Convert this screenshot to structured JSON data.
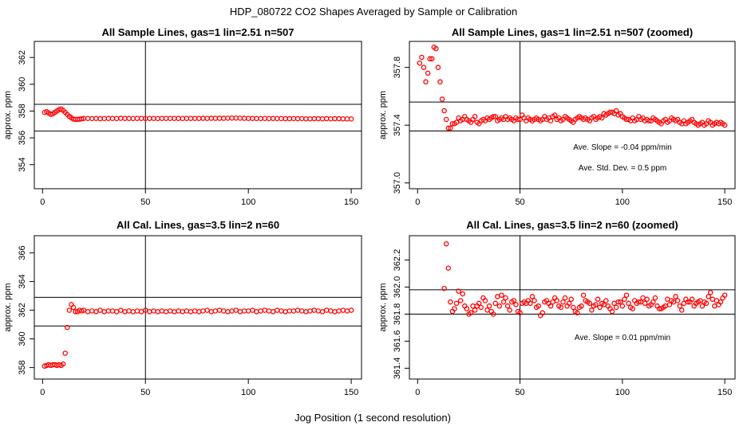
{
  "figure": {
    "title": "HDP_080722  CO2 Shapes Averaged by Sample or Calibration",
    "xlabel": "Jog Position (1 second resolution)"
  },
  "colors": {
    "points": "#ff0000",
    "axes": "#000000"
  },
  "chart_data": [
    {
      "type": "scatter",
      "title": "All Sample Lines, gas=1 lin=2.51 n=507",
      "xlabel": "",
      "ylabel": "approx. ppm",
      "xlim": [
        -4,
        155
      ],
      "ylim": [
        352.2,
        363.2
      ],
      "xticks": [
        0,
        50,
        100,
        150
      ],
      "yticks": [
        354,
        356,
        358,
        360,
        362
      ],
      "hlines": [
        358.5,
        356.5
      ],
      "vline": 50,
      "annotations": [],
      "series": [
        {
          "x": [
            1,
            2,
            3,
            4,
            5,
            6,
            7,
            8,
            9,
            10,
            11,
            12,
            13,
            14,
            15,
            16,
            17,
            18,
            19,
            20,
            22,
            24,
            26,
            28,
            30,
            32,
            34,
            36,
            38,
            40,
            42,
            44,
            46,
            48,
            50,
            52,
            54,
            56,
            58,
            60,
            62,
            64,
            66,
            68,
            70,
            72,
            74,
            76,
            78,
            80,
            82,
            84,
            86,
            88,
            90,
            92,
            94,
            96,
            98,
            100,
            102,
            104,
            106,
            108,
            110,
            112,
            114,
            116,
            118,
            120,
            122,
            124,
            126,
            128,
            130,
            132,
            134,
            136,
            138,
            140,
            142,
            144,
            146,
            148,
            150
          ],
          "y": [
            357.9,
            357.95,
            357.85,
            357.75,
            357.8,
            357.9,
            358.0,
            358.1,
            358.15,
            358.05,
            357.9,
            357.75,
            357.6,
            357.5,
            357.4,
            357.38,
            357.38,
            357.4,
            357.42,
            357.45,
            357.45,
            357.44,
            357.45,
            357.43,
            357.44,
            357.45,
            357.45,
            357.44,
            357.46,
            357.45,
            357.45,
            357.44,
            357.45,
            357.45,
            357.44,
            357.45,
            357.45,
            357.44,
            357.45,
            357.45,
            357.45,
            357.45,
            357.45,
            357.44,
            357.45,
            357.45,
            357.45,
            357.45,
            357.46,
            357.45,
            357.46,
            357.46,
            357.46,
            357.46,
            357.47,
            357.48,
            357.48,
            357.47,
            357.46,
            357.45,
            357.45,
            357.44,
            357.44,
            357.45,
            357.44,
            357.45,
            357.44,
            357.44,
            357.43,
            357.43,
            357.44,
            357.43,
            357.44,
            357.42,
            357.42,
            357.43,
            357.43,
            357.42,
            357.43,
            357.42,
            357.43,
            357.43,
            357.42,
            357.41,
            357.41
          ]
        }
      ]
    },
    {
      "type": "scatter",
      "title": "All Sample Lines, gas=1 lin=2.51 n=507 (zoomed)",
      "xlabel": "",
      "ylabel": "approx. ppm",
      "xlim": [
        -4,
        155
      ],
      "ylim": [
        356.96,
        357.98
      ],
      "xticks": [
        0,
        50,
        100,
        150
      ],
      "yticks": [
        357.0,
        357.4,
        357.8
      ],
      "hlines": [
        357.56,
        357.36
      ],
      "vline": 50,
      "annotations": [
        "Ave. Slope =  -0.04  ppm/min",
        "Ave. Std. Dev. =  0.5  ppm"
      ],
      "series": [
        {
          "x": [
            1,
            2,
            3,
            4,
            5,
            6,
            7,
            8,
            9,
            10,
            11,
            12,
            13,
            14,
            15,
            16,
            17,
            18,
            19,
            20,
            21,
            22,
            23,
            24,
            25,
            26,
            27,
            28,
            29,
            30,
            31,
            32,
            33,
            34,
            35,
            36,
            37,
            38,
            39,
            40,
            41,
            42,
            43,
            44,
            45,
            46,
            47,
            48,
            49,
            50,
            51,
            52,
            53,
            54,
            55,
            56,
            57,
            58,
            59,
            60,
            61,
            62,
            63,
            64,
            65,
            66,
            67,
            68,
            69,
            70,
            71,
            72,
            73,
            74,
            75,
            76,
            77,
            78,
            79,
            80,
            81,
            82,
            83,
            84,
            85,
            86,
            87,
            88,
            89,
            90,
            91,
            92,
            93,
            94,
            95,
            96,
            97,
            98,
            99,
            100,
            101,
            102,
            103,
            104,
            105,
            106,
            107,
            108,
            109,
            110,
            111,
            112,
            113,
            114,
            115,
            116,
            117,
            118,
            119,
            120,
            121,
            122,
            123,
            124,
            125,
            126,
            127,
            128,
            129,
            130,
            131,
            132,
            133,
            134,
            135,
            136,
            137,
            138,
            139,
            140,
            141,
            142,
            143,
            144,
            145,
            146,
            147,
            148,
            149,
            150
          ],
          "y": [
            357.83,
            357.87,
            357.8,
            357.7,
            357.76,
            357.86,
            357.86,
            357.94,
            357.93,
            357.8,
            357.7,
            357.58,
            357.5,
            357.44,
            357.38,
            357.38,
            357.41,
            357.41,
            357.42,
            357.45,
            357.43,
            357.44,
            357.46,
            357.44,
            357.43,
            357.42,
            357.44,
            357.46,
            357.42,
            357.41,
            357.43,
            357.44,
            357.43,
            357.45,
            357.44,
            357.45,
            357.46,
            357.46,
            357.43,
            357.44,
            357.45,
            357.44,
            357.46,
            357.44,
            357.45,
            357.44,
            357.43,
            357.45,
            357.44,
            357.44,
            357.47,
            357.45,
            357.43,
            357.45,
            357.44,
            357.43,
            357.44,
            357.45,
            357.44,
            357.43,
            357.44,
            357.46,
            357.44,
            357.45,
            357.43,
            357.46,
            357.47,
            357.44,
            357.45,
            357.43,
            357.44,
            357.46,
            357.45,
            357.44,
            357.43,
            357.42,
            357.44,
            357.45,
            357.46,
            357.45,
            357.44,
            357.45,
            357.44,
            357.43,
            357.45,
            357.46,
            357.44,
            357.45,
            357.46,
            357.45,
            357.48,
            357.47,
            357.48,
            357.49,
            357.49,
            357.48,
            357.5,
            357.47,
            357.48,
            357.46,
            357.45,
            357.44,
            357.44,
            357.43,
            357.45,
            357.43,
            357.44,
            357.46,
            357.44,
            357.45,
            357.43,
            357.44,
            357.43,
            357.43,
            357.45,
            357.44,
            357.43,
            357.42,
            357.41,
            357.43,
            357.44,
            357.42,
            357.43,
            357.45,
            357.44,
            357.43,
            357.44,
            357.42,
            357.41,
            357.43,
            357.41,
            357.42,
            357.43,
            357.44,
            357.42,
            357.41,
            357.4,
            357.41,
            357.42,
            357.4,
            357.41,
            357.43,
            357.42,
            357.4,
            357.41,
            357.42,
            357.41,
            357.42,
            357.41,
            357.4
          ]
        }
      ]
    },
    {
      "type": "scatter",
      "title": "All Cal. Lines, gas=3.5 lin=2 n=60",
      "xlabel": "",
      "ylabel": "approx. ppm",
      "xlim": [
        -4,
        155
      ],
      "ylim": [
        357.2,
        367.2
      ],
      "xticks": [
        0,
        50,
        100,
        150
      ],
      "yticks": [
        358,
        360,
        362,
        364,
        366
      ],
      "hlines": [
        362.9,
        360.9
      ],
      "vline": 50,
      "annotations": [],
      "series": [
        {
          "x": [
            1,
            2,
            3,
            4,
            5,
            6,
            7,
            8,
            9,
            10,
            11,
            12,
            13,
            14,
            15,
            16,
            17,
            18,
            19,
            20,
            22,
            24,
            26,
            28,
            30,
            32,
            34,
            36,
            38,
            40,
            42,
            44,
            46,
            48,
            50,
            52,
            54,
            56,
            58,
            60,
            62,
            64,
            66,
            68,
            70,
            72,
            74,
            76,
            78,
            80,
            82,
            84,
            86,
            88,
            90,
            92,
            94,
            96,
            98,
            100,
            102,
            104,
            106,
            108,
            110,
            112,
            114,
            116,
            118,
            120,
            122,
            124,
            126,
            128,
            130,
            132,
            134,
            136,
            138,
            140,
            142,
            144,
            146,
            148,
            150
          ],
          "y": [
            358.1,
            358.15,
            358.2,
            358.15,
            358.2,
            358.2,
            358.15,
            358.2,
            358.15,
            358.25,
            359.0,
            360.8,
            362.0,
            362.4,
            362.2,
            361.9,
            361.9,
            362.0,
            361.95,
            362.0,
            361.9,
            361.95,
            361.9,
            362.0,
            361.9,
            361.95,
            361.95,
            361.9,
            362.0,
            361.9,
            361.95,
            361.9,
            361.95,
            361.9,
            362.0,
            361.9,
            361.95,
            361.9,
            361.95,
            361.9,
            361.95,
            361.9,
            361.95,
            361.9,
            361.95,
            361.9,
            361.95,
            361.9,
            361.95,
            362.0,
            361.9,
            361.95,
            362.0,
            361.95,
            361.9,
            361.95,
            362.0,
            361.9,
            361.95,
            361.95,
            362.0,
            361.9,
            361.95,
            362.0,
            361.95,
            361.9,
            362.0,
            361.95,
            361.9,
            361.95,
            361.95,
            362.0,
            361.95,
            361.9,
            361.95,
            362.0,
            361.95,
            361.9,
            362.0,
            361.95,
            361.9,
            361.95,
            362.0,
            361.95,
            362.0
          ]
        }
      ]
    },
    {
      "type": "scatter",
      "title": "All Cal. Lines, gas=3.5 lin=2 n=60 (zoomed)",
      "xlabel": "",
      "ylabel": "approx. ppm",
      "xlim": [
        -4,
        155
      ],
      "ylim": [
        361.32,
        362.38
      ],
      "xticks": [
        0,
        50,
        100,
        150
      ],
      "yticks": [
        361.4,
        361.6,
        361.8,
        362.0,
        362.2
      ],
      "hlines": [
        361.98,
        361.8
      ],
      "vline": 50,
      "annotations": [
        "Ave. Slope =  0.01  ppm/min"
      ],
      "series": [
        {
          "x": [
            13,
            14,
            15,
            16,
            17,
            18,
            19,
            20,
            21,
            22,
            23,
            24,
            25,
            26,
            27,
            28,
            29,
            30,
            31,
            32,
            33,
            34,
            35,
            36,
            37,
            38,
            39,
            40,
            41,
            42,
            43,
            44,
            45,
            46,
            47,
            48,
            49,
            50,
            51,
            52,
            53,
            54,
            55,
            56,
            57,
            58,
            59,
            60,
            61,
            62,
            63,
            64,
            65,
            66,
            67,
            68,
            69,
            70,
            71,
            72,
            73,
            74,
            75,
            76,
            77,
            78,
            79,
            80,
            81,
            82,
            83,
            84,
            85,
            86,
            87,
            88,
            89,
            90,
            91,
            92,
            93,
            94,
            95,
            96,
            97,
            98,
            99,
            100,
            101,
            102,
            103,
            104,
            105,
            106,
            107,
            108,
            109,
            110,
            111,
            112,
            113,
            114,
            115,
            116,
            117,
            118,
            119,
            120,
            121,
            122,
            123,
            124,
            125,
            126,
            127,
            128,
            129,
            130,
            131,
            132,
            133,
            134,
            135,
            136,
            137,
            138,
            139,
            140,
            141,
            142,
            143,
            144,
            145,
            146,
            147,
            148,
            149,
            150
          ],
          "y": [
            361.99,
            362.32,
            362.14,
            361.89,
            361.82,
            361.84,
            361.88,
            361.97,
            361.9,
            361.95,
            361.86,
            361.84,
            361.8,
            361.81,
            361.86,
            361.83,
            361.86,
            361.88,
            361.85,
            361.92,
            361.9,
            361.83,
            361.86,
            361.82,
            361.8,
            361.88,
            361.93,
            361.86,
            361.94,
            361.89,
            361.92,
            361.86,
            361.83,
            361.89,
            361.9,
            361.87,
            361.82,
            361.81,
            361.88,
            361.89,
            361.88,
            361.9,
            361.88,
            361.93,
            361.9,
            361.85,
            361.86,
            361.79,
            361.81,
            361.89,
            361.9,
            361.88,
            361.86,
            361.89,
            361.92,
            361.9,
            361.86,
            361.85,
            361.89,
            361.92,
            361.86,
            361.88,
            361.91,
            361.85,
            361.82,
            361.81,
            361.85,
            361.86,
            361.94,
            361.9,
            361.89,
            361.88,
            361.83,
            361.86,
            361.87,
            361.91,
            361.85,
            361.88,
            361.87,
            361.9,
            361.86,
            361.84,
            361.82,
            361.88,
            361.85,
            361.89,
            361.89,
            361.86,
            361.91,
            361.94,
            361.88,
            361.85,
            361.84,
            361.9,
            361.88,
            361.89,
            361.89,
            361.92,
            361.88,
            361.91,
            361.86,
            361.87,
            361.89,
            361.92,
            361.86,
            361.84,
            361.84,
            361.85,
            361.86,
            361.91,
            361.87,
            361.9,
            361.89,
            361.93,
            361.9,
            361.86,
            361.83,
            361.88,
            361.91,
            361.89,
            361.89,
            361.91,
            361.86,
            361.88,
            361.89,
            361.9,
            361.86,
            361.89,
            361.88,
            361.93,
            361.96,
            361.91,
            361.86,
            361.9,
            361.87,
            361.89,
            361.92,
            361.94
          ]
        }
      ]
    }
  ]
}
